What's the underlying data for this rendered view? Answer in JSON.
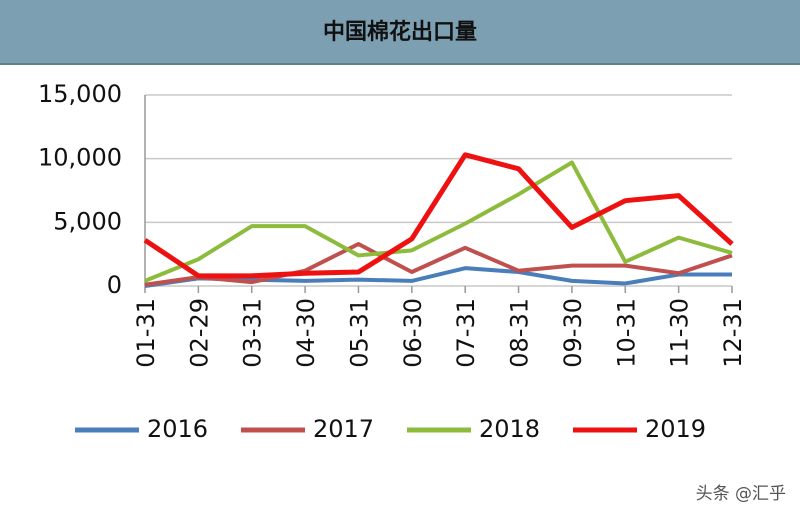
{
  "chart_data": {
    "type": "line",
    "title": "中国棉花出口量",
    "categories": [
      "01-31",
      "02-29",
      "03-31",
      "04-30",
      "05-31",
      "06-30",
      "07-31",
      "08-31",
      "09-30",
      "10-31",
      "11-30",
      "12-31"
    ],
    "series": [
      {
        "name": "2016",
        "color": "#4a7ebb",
        "values": [
          0,
          600,
          500,
          400,
          500,
          400,
          1400,
          1100,
          400,
          200,
          900,
          900
        ]
      },
      {
        "name": "2017",
        "color": "#c0504d",
        "values": [
          100,
          700,
          300,
          1200,
          3300,
          1100,
          3000,
          1200,
          1600,
          1600,
          1000,
          2400
        ]
      },
      {
        "name": "2018",
        "color": "#8dbb3c",
        "values": [
          400,
          2100,
          4700,
          4700,
          2400,
          2800,
          4900,
          7200,
          9700,
          1900,
          3800,
          2600
        ]
      },
      {
        "name": "2019",
        "color": "#ee1111",
        "values": [
          3600,
          800,
          800,
          1000,
          1100,
          3700,
          10300,
          9200,
          4600,
          6700,
          7100,
          3300
        ]
      }
    ],
    "ylim": [
      0,
      15000
    ],
    "yticks": [
      0,
      {
        "value": 5000,
        "label": "5,000"
      },
      {
        "value": 10000,
        "label": "10,000"
      },
      {
        "value": 15000,
        "label": "15,000"
      }
    ],
    "grid": true,
    "legend": "bottom"
  },
  "watermark": "头条 @汇乎"
}
